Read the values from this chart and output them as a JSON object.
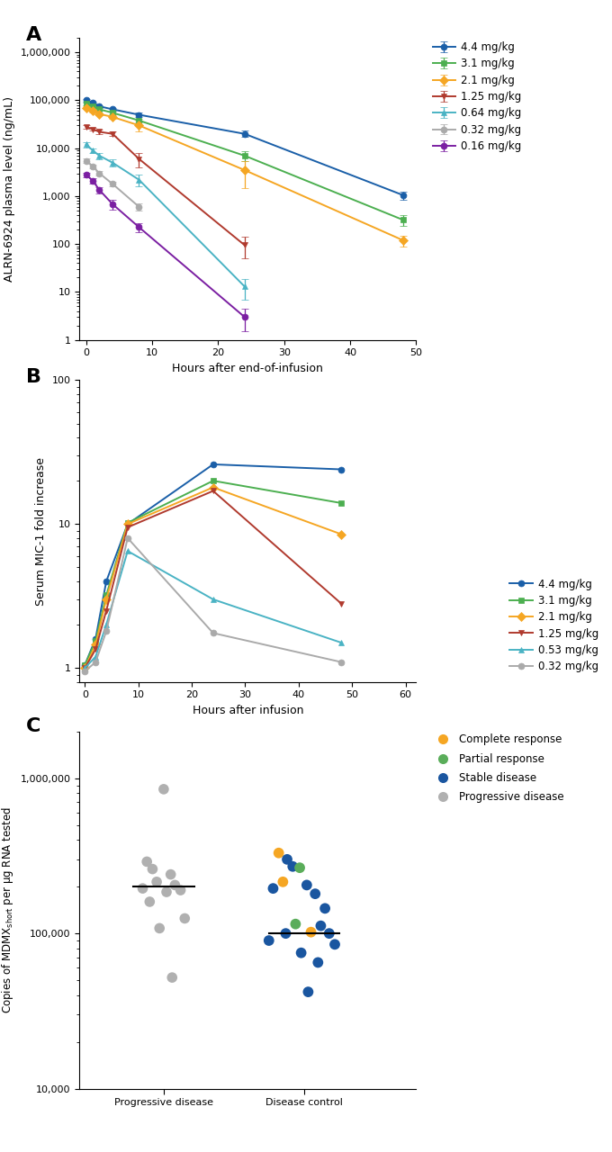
{
  "panel_A": {
    "xlabel": "Hours after end-of-infusion",
    "ylabel": "ALRN-6924 plasma level (ng/mL)",
    "series": [
      {
        "label": "4.4 mg/kg",
        "color": "#1a5fa8",
        "marker": "o",
        "x": [
          0,
          1,
          2,
          4,
          8,
          24,
          48
        ],
        "y": [
          100000,
          90000,
          75000,
          65000,
          50000,
          20000,
          1050
        ],
        "yerr_low": [
          5000,
          5000,
          5000,
          5000,
          5000,
          3000,
          200
        ],
        "yerr_high": [
          5000,
          5000,
          5000,
          5000,
          5000,
          3000,
          200
        ]
      },
      {
        "label": "3.1 mg/kg",
        "color": "#4caf50",
        "marker": "s",
        "x": [
          0,
          1,
          2,
          4,
          8,
          24,
          48
        ],
        "y": [
          85000,
          75000,
          65000,
          55000,
          38000,
          7000,
          320
        ],
        "yerr_low": [
          5000,
          4000,
          4000,
          4000,
          4000,
          1500,
          80
        ],
        "yerr_high": [
          5000,
          4000,
          4000,
          4000,
          4000,
          1500,
          80
        ]
      },
      {
        "label": "2.1 mg/kg",
        "color": "#f5a623",
        "marker": "D",
        "x": [
          0,
          1,
          2,
          4,
          8,
          24,
          48
        ],
        "y": [
          70000,
          60000,
          52000,
          45000,
          30000,
          3500,
          120
        ],
        "yerr_low": [
          4000,
          4000,
          4000,
          4000,
          8000,
          2000,
          30
        ],
        "yerr_high": [
          4000,
          4000,
          4000,
          4000,
          8000,
          2000,
          30
        ]
      },
      {
        "label": "1.25 mg/kg",
        "color": "#b03a2e",
        "marker": "v",
        "x": [
          0,
          1,
          2,
          4,
          8,
          24
        ],
        "y": [
          28000,
          25000,
          22000,
          20000,
          6000,
          95
        ],
        "yerr_low": [
          2000,
          2000,
          2000,
          2000,
          2000,
          45
        ],
        "yerr_high": [
          2000,
          2000,
          2000,
          2000,
          2000,
          45
        ]
      },
      {
        "label": "0.64 mg/kg",
        "color": "#4ab3c4",
        "marker": "^",
        "x": [
          0,
          1,
          2,
          4,
          8,
          24
        ],
        "y": [
          12000,
          9000,
          7000,
          5000,
          2200,
          13
        ],
        "yerr_low": [
          1500,
          1000,
          1000,
          800,
          600,
          6
        ],
        "yerr_high": [
          1500,
          1000,
          1000,
          800,
          600,
          6
        ]
      },
      {
        "label": "0.32 mg/kg",
        "color": "#aaaaaa",
        "marker": "o",
        "x": [
          0,
          1,
          2,
          4,
          8
        ],
        "y": [
          5500,
          4200,
          3000,
          1800,
          600
        ],
        "yerr_low": [
          600,
          400,
          300,
          200,
          100
        ],
        "yerr_high": [
          600,
          400,
          300,
          200,
          100
        ]
      },
      {
        "label": "0.16 mg/kg",
        "color": "#7b1fa2",
        "marker": "o",
        "x": [
          0,
          1,
          2,
          4,
          8,
          24
        ],
        "y": [
          2800,
          2100,
          1350,
          680,
          225,
          3.0
        ],
        "yerr_low": [
          300,
          250,
          200,
          150,
          50,
          1.5
        ],
        "yerr_high": [
          300,
          250,
          200,
          150,
          50,
          1.5
        ]
      }
    ],
    "ylim": [
      1,
      2000000
    ],
    "xlim": [
      -1,
      50
    ],
    "xticks": [
      0,
      10,
      20,
      30,
      40,
      50
    ]
  },
  "panel_B": {
    "xlabel": "Hours after infusion",
    "ylabel": "Serum MIC-1 fold increase",
    "series": [
      {
        "label": "4.4 mg/kg",
        "color": "#1a5fa8",
        "marker": "o",
        "x": [
          0,
          2,
          4,
          8,
          24,
          48
        ],
        "y": [
          1.05,
          1.6,
          4.0,
          10.0,
          26.0,
          24.0
        ]
      },
      {
        "label": "3.1 mg/kg",
        "color": "#4caf50",
        "marker": "s",
        "x": [
          0,
          2,
          4,
          8,
          24,
          48
        ],
        "y": [
          1.05,
          1.55,
          3.2,
          10.2,
          20.0,
          14.0
        ]
      },
      {
        "label": "2.1 mg/kg",
        "color": "#f5a623",
        "marker": "D",
        "x": [
          0,
          2,
          4,
          8,
          24,
          48
        ],
        "y": [
          1.0,
          1.45,
          3.0,
          10.0,
          18.0,
          8.5
        ]
      },
      {
        "label": "1.25 mg/kg",
        "color": "#b03a2e",
        "marker": "v",
        "x": [
          0,
          2,
          4,
          8,
          24,
          48
        ],
        "y": [
          1.0,
          1.35,
          2.5,
          9.5,
          17.0,
          2.8
        ]
      },
      {
        "label": "0.53 mg/kg",
        "color": "#4ab3c4",
        "marker": "^",
        "x": [
          0,
          2,
          4,
          8,
          24,
          48
        ],
        "y": [
          1.0,
          1.2,
          2.0,
          6.5,
          3.0,
          1.5
        ]
      },
      {
        "label": "0.32 mg/kg",
        "color": "#aaaaaa",
        "marker": "o",
        "x": [
          0,
          2,
          4,
          8,
          24,
          48
        ],
        "y": [
          0.95,
          1.1,
          1.8,
          8.0,
          1.75,
          1.1
        ]
      }
    ],
    "ylim": [
      0.8,
      100
    ],
    "xlim": [
      -1,
      62
    ],
    "xticks": [
      0,
      10,
      20,
      30,
      40,
      50,
      60
    ]
  },
  "panel_C": {
    "xlabel_left": "Progressive disease",
    "xlabel_right": "Disease control",
    "ylabel": "Copies of MDMX$_\\mathregular{short}$ per μg RNA tested",
    "ylim": [
      10000,
      2000000
    ],
    "legend_items": [
      {
        "label": "Complete response",
        "color": "#f5a623"
      },
      {
        "label": "Partial response",
        "color": "#5aad5a"
      },
      {
        "label": "Stable disease",
        "color": "#1a56a0"
      },
      {
        "label": "Progressive disease",
        "color": "#b0b0b0"
      }
    ],
    "progressive_disease_x": [
      1.0,
      0.88,
      0.92,
      1.05,
      0.95,
      1.08,
      0.85,
      1.12,
      1.02,
      0.9,
      1.15,
      0.97,
      1.06
    ],
    "progressive_disease_y": [
      850000,
      290000,
      260000,
      240000,
      215000,
      205000,
      195000,
      190000,
      185000,
      160000,
      125000,
      108000,
      52000
    ],
    "disease_control_x": [
      1.82,
      1.88,
      1.92,
      1.97,
      1.85,
      2.02,
      1.78,
      2.08,
      2.15,
      1.94,
      2.12,
      2.05,
      2.18,
      1.87,
      1.75,
      2.22,
      1.98,
      2.1,
      2.03
    ],
    "disease_control_y": [
      330000,
      300000,
      270000,
      265000,
      215000,
      205000,
      195000,
      180000,
      145000,
      115000,
      112000,
      102000,
      100000,
      100000,
      90000,
      85000,
      75000,
      65000,
      42000
    ],
    "disease_control_colors": [
      "#f5a623",
      "#1a56a0",
      "#1a56a0",
      "#5aad5a",
      "#f5a623",
      "#1a56a0",
      "#1a56a0",
      "#1a56a0",
      "#1a56a0",
      "#5aad5a",
      "#1a56a0",
      "#f5a623",
      "#1a56a0",
      "#1a56a0",
      "#1a56a0",
      "#1a56a0",
      "#1a56a0",
      "#1a56a0",
      "#1a56a0"
    ],
    "pd_median": 200000,
    "dc_median": 100000
  }
}
